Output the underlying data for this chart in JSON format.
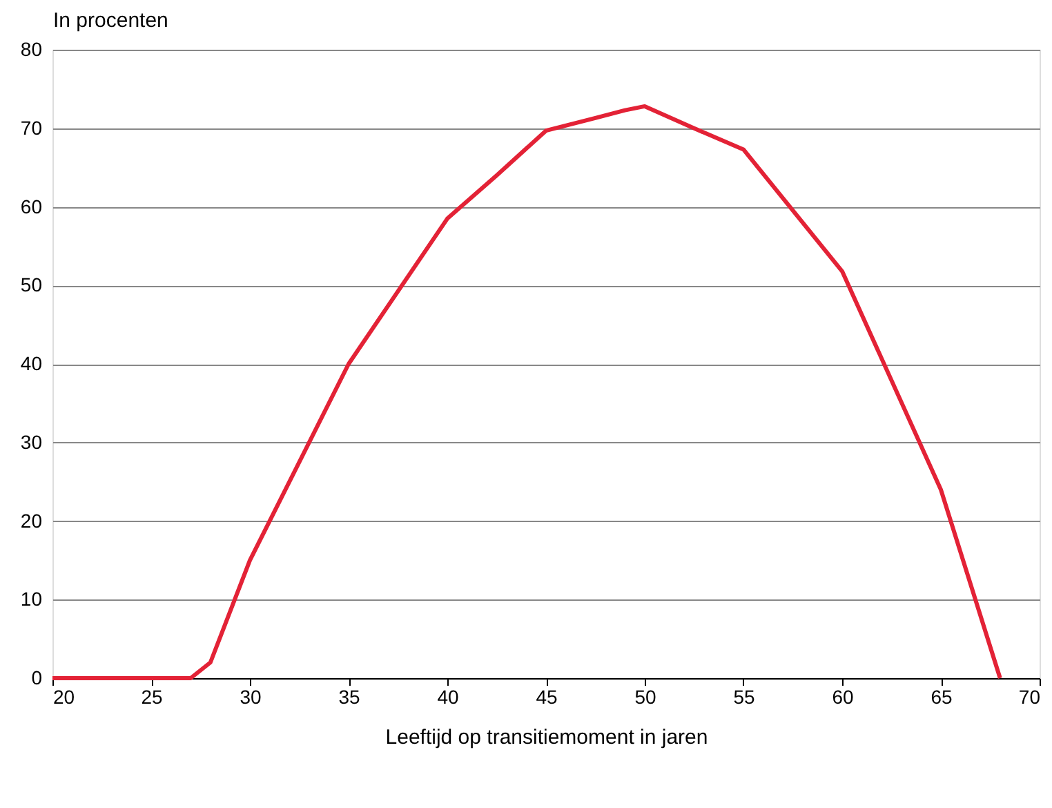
{
  "chart_data": {
    "type": "line",
    "ylabel": "In procenten",
    "xlabel": "Leeftijd op transitiemoment in jaren",
    "x": [
      20,
      27,
      28,
      30,
      35,
      40,
      42.5,
      45,
      47.5,
      49,
      50,
      52.5,
      55,
      60,
      65,
      68
    ],
    "series": [
      {
        "color": "#e32236",
        "values": [
          0,
          0,
          2,
          15,
          40,
          58.5,
          64,
          69.7,
          71.3,
          72.3,
          72.8,
          70,
          67.3,
          51.8,
          24,
          0
        ]
      }
    ],
    "xlim": [
      20,
      70
    ],
    "xticks": [
      20,
      25,
      30,
      35,
      40,
      45,
      50,
      55,
      60,
      65,
      70
    ],
    "ylim": [
      0,
      80
    ],
    "yticks": [
      0,
      10,
      20,
      30,
      40,
      50,
      60,
      70,
      80
    ],
    "grid": "y",
    "marker": "none",
    "line_style": "solid"
  }
}
